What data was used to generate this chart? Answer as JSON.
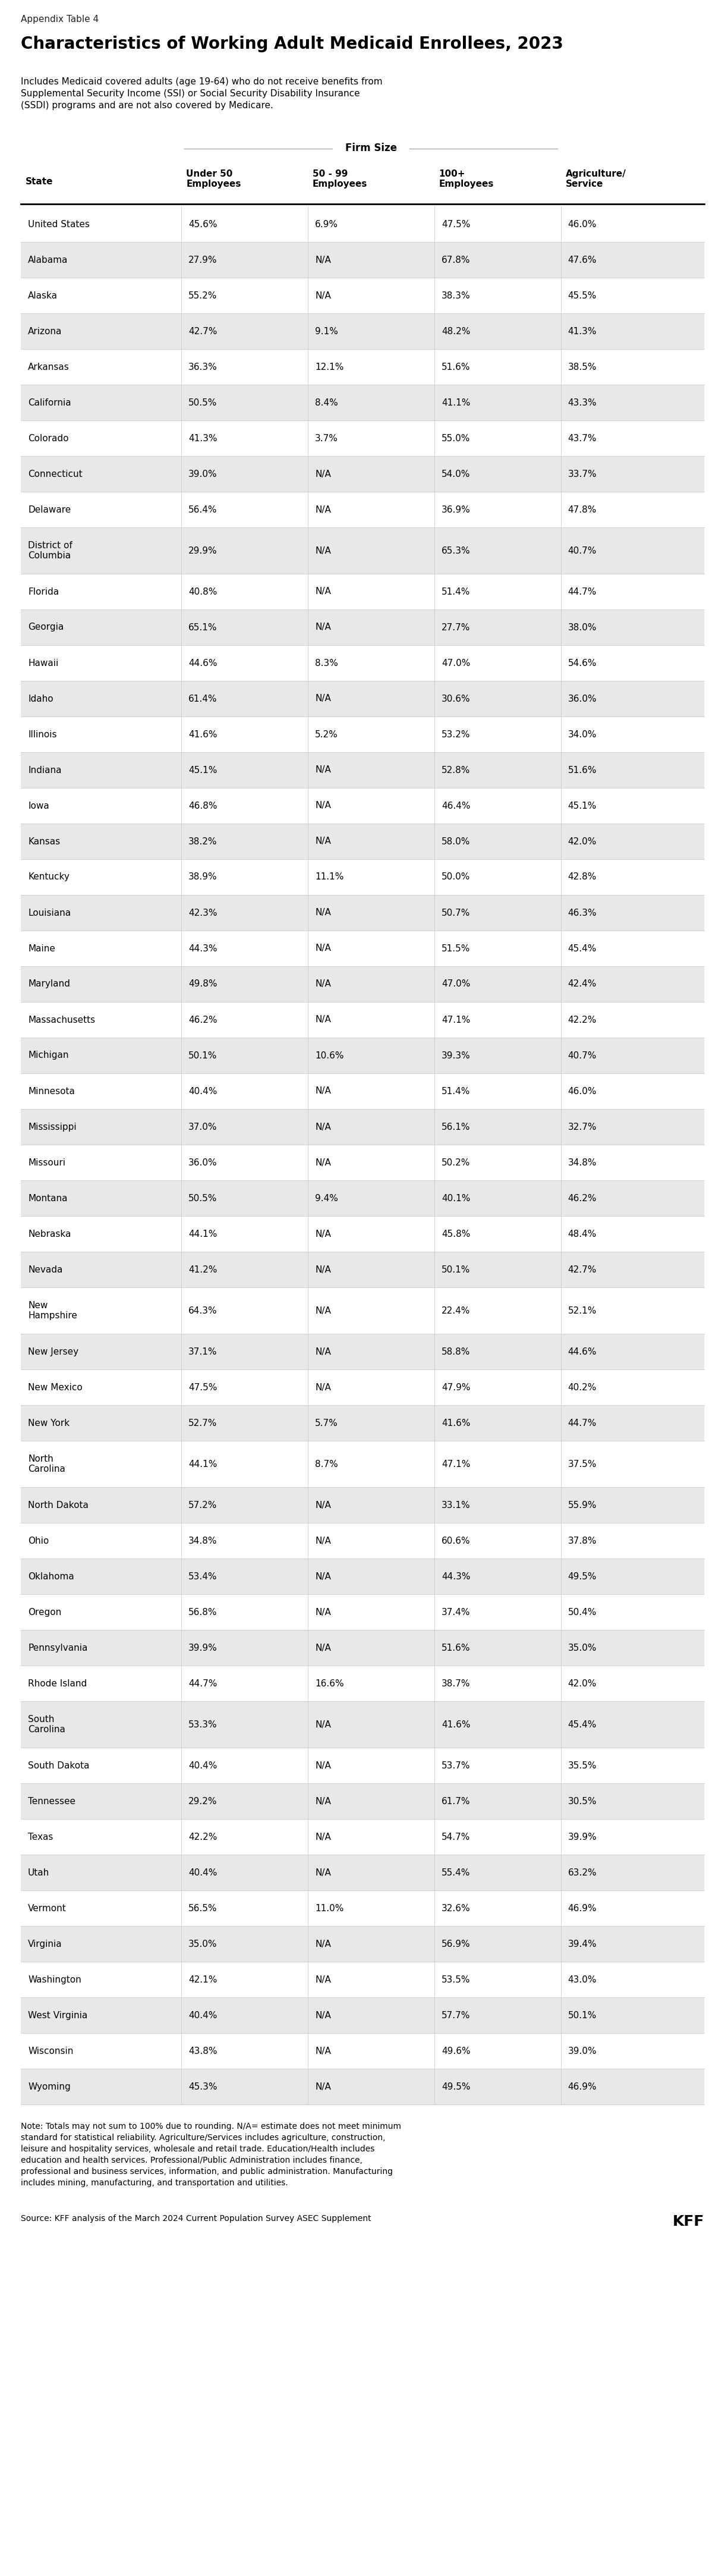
{
  "appendix_label": "Appendix Table 4",
  "title": "Characteristics of Working Adult Medicaid Enrollees, 2023",
  "subtitle": "Includes Medicaid covered adults (age 19-64) who do not receive benefits from\nSupplemental Security Income (SSI) or Social Security Disability Insurance\n(SSDI) programs and are not also covered by Medicare.",
  "group_header": "Firm Size",
  "col_headers": [
    "State",
    "Under 50\nEmployees",
    "50 - 99\nEmployees",
    "100+\nEmployees",
    "Agriculture/\nService"
  ],
  "rows": [
    [
      "United States",
      "45.6%",
      "6.9%",
      "47.5%",
      "46.0%"
    ],
    [
      "Alabama",
      "27.9%",
      "N/A",
      "67.8%",
      "47.6%"
    ],
    [
      "Alaska",
      "55.2%",
      "N/A",
      "38.3%",
      "45.5%"
    ],
    [
      "Arizona",
      "42.7%",
      "9.1%",
      "48.2%",
      "41.3%"
    ],
    [
      "Arkansas",
      "36.3%",
      "12.1%",
      "51.6%",
      "38.5%"
    ],
    [
      "California",
      "50.5%",
      "8.4%",
      "41.1%",
      "43.3%"
    ],
    [
      "Colorado",
      "41.3%",
      "3.7%",
      "55.0%",
      "43.7%"
    ],
    [
      "Connecticut",
      "39.0%",
      "N/A",
      "54.0%",
      "33.7%"
    ],
    [
      "Delaware",
      "56.4%",
      "N/A",
      "36.9%",
      "47.8%"
    ],
    [
      "District of\nColumbia",
      "29.9%",
      "N/A",
      "65.3%",
      "40.7%"
    ],
    [
      "Florida",
      "40.8%",
      "N/A",
      "51.4%",
      "44.7%"
    ],
    [
      "Georgia",
      "65.1%",
      "N/A",
      "27.7%",
      "38.0%"
    ],
    [
      "Hawaii",
      "44.6%",
      "8.3%",
      "47.0%",
      "54.6%"
    ],
    [
      "Idaho",
      "61.4%",
      "N/A",
      "30.6%",
      "36.0%"
    ],
    [
      "Illinois",
      "41.6%",
      "5.2%",
      "53.2%",
      "34.0%"
    ],
    [
      "Indiana",
      "45.1%",
      "N/A",
      "52.8%",
      "51.6%"
    ],
    [
      "Iowa",
      "46.8%",
      "N/A",
      "46.4%",
      "45.1%"
    ],
    [
      "Kansas",
      "38.2%",
      "N/A",
      "58.0%",
      "42.0%"
    ],
    [
      "Kentucky",
      "38.9%",
      "11.1%",
      "50.0%",
      "42.8%"
    ],
    [
      "Louisiana",
      "42.3%",
      "N/A",
      "50.7%",
      "46.3%"
    ],
    [
      "Maine",
      "44.3%",
      "N/A",
      "51.5%",
      "45.4%"
    ],
    [
      "Maryland",
      "49.8%",
      "N/A",
      "47.0%",
      "42.4%"
    ],
    [
      "Massachusetts",
      "46.2%",
      "N/A",
      "47.1%",
      "42.2%"
    ],
    [
      "Michigan",
      "50.1%",
      "10.6%",
      "39.3%",
      "40.7%"
    ],
    [
      "Minnesota",
      "40.4%",
      "N/A",
      "51.4%",
      "46.0%"
    ],
    [
      "Mississippi",
      "37.0%",
      "N/A",
      "56.1%",
      "32.7%"
    ],
    [
      "Missouri",
      "36.0%",
      "N/A",
      "50.2%",
      "34.8%"
    ],
    [
      "Montana",
      "50.5%",
      "9.4%",
      "40.1%",
      "46.2%"
    ],
    [
      "Nebraska",
      "44.1%",
      "N/A",
      "45.8%",
      "48.4%"
    ],
    [
      "Nevada",
      "41.2%",
      "N/A",
      "50.1%",
      "42.7%"
    ],
    [
      "New\nHampshire",
      "64.3%",
      "N/A",
      "22.4%",
      "52.1%"
    ],
    [
      "New Jersey",
      "37.1%",
      "N/A",
      "58.8%",
      "44.6%"
    ],
    [
      "New Mexico",
      "47.5%",
      "N/A",
      "47.9%",
      "40.2%"
    ],
    [
      "New York",
      "52.7%",
      "5.7%",
      "41.6%",
      "44.7%"
    ],
    [
      "North\nCarolina",
      "44.1%",
      "8.7%",
      "47.1%",
      "37.5%"
    ],
    [
      "North Dakota",
      "57.2%",
      "N/A",
      "33.1%",
      "55.9%"
    ],
    [
      "Ohio",
      "34.8%",
      "N/A",
      "60.6%",
      "37.8%"
    ],
    [
      "Oklahoma",
      "53.4%",
      "N/A",
      "44.3%",
      "49.5%"
    ],
    [
      "Oregon",
      "56.8%",
      "N/A",
      "37.4%",
      "50.4%"
    ],
    [
      "Pennsylvania",
      "39.9%",
      "N/A",
      "51.6%",
      "35.0%"
    ],
    [
      "Rhode Island",
      "44.7%",
      "16.6%",
      "38.7%",
      "42.0%"
    ],
    [
      "South\nCarolina",
      "53.3%",
      "N/A",
      "41.6%",
      "45.4%"
    ],
    [
      "South Dakota",
      "40.4%",
      "N/A",
      "53.7%",
      "35.5%"
    ],
    [
      "Tennessee",
      "29.2%",
      "N/A",
      "61.7%",
      "30.5%"
    ],
    [
      "Texas",
      "42.2%",
      "N/A",
      "54.7%",
      "39.9%"
    ],
    [
      "Utah",
      "40.4%",
      "N/A",
      "55.4%",
      "63.2%"
    ],
    [
      "Vermont",
      "56.5%",
      "11.0%",
      "32.6%",
      "46.9%"
    ],
    [
      "Virginia",
      "35.0%",
      "N/A",
      "56.9%",
      "39.4%"
    ],
    [
      "Washington",
      "42.1%",
      "N/A",
      "53.5%",
      "43.0%"
    ],
    [
      "West Virginia",
      "40.4%",
      "N/A",
      "57.7%",
      "50.1%"
    ],
    [
      "Wisconsin",
      "43.8%",
      "N/A",
      "49.6%",
      "39.0%"
    ],
    [
      "Wyoming",
      "45.3%",
      "N/A",
      "49.5%",
      "46.9%"
    ]
  ],
  "note": "Note: Totals may not sum to 100% due to rounding. N/A= estimate does not meet minimum\nstandard for statistical reliability. Agriculture/Services includes agriculture, construction,\nleisure and hospitality services, wholesale and retail trade. Education/Health includes\neducation and health services. Professional/Public Administration includes finance,\nprofessional and business services, information, and public administration. Manufacturing\nincludes mining, manufacturing, and transportation and utilities.",
  "source": "Source: KFF analysis of the March 2024 Current Population Survey ASEC Supplement",
  "bg_color_even": "#e8e8e8",
  "bg_color_odd": "#ffffff",
  "text_color": "#000000"
}
